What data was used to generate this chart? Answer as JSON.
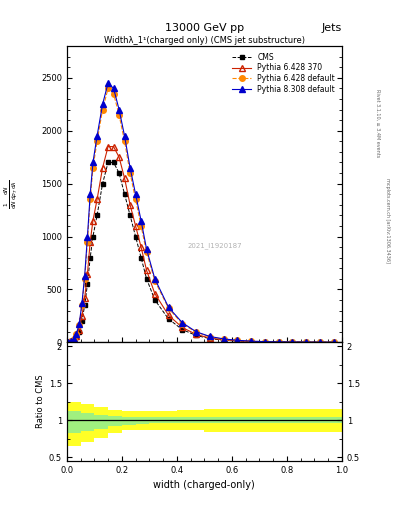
{
  "title": "13000 GeV pp",
  "title_right": "Jets",
  "plot_title": "Widthλ_1¹(charged only) (CMS jet substructure)",
  "xlabel": "width (charged-only)",
  "ylabel_ratio": "Ratio to CMS",
  "right_label_top": "Rivet 3.1.10, ≥ 3.4M events",
  "right_label_bottom": "mcplots.cern.ch [arXiv:1306.3436]",
  "watermark": "2021_I1920187",
  "x_data": [
    0.005,
    0.015,
    0.025,
    0.035,
    0.045,
    0.055,
    0.065,
    0.075,
    0.085,
    0.095,
    0.11,
    0.13,
    0.15,
    0.17,
    0.19,
    0.21,
    0.23,
    0.25,
    0.27,
    0.29,
    0.32,
    0.37,
    0.42,
    0.47,
    0.52,
    0.57,
    0.62,
    0.67,
    0.72,
    0.77,
    0.82,
    0.87,
    0.92,
    0.97
  ],
  "cms_y": [
    5,
    10,
    20,
    50,
    100,
    200,
    350,
    550,
    800,
    1000,
    1200,
    1500,
    1700,
    1700,
    1600,
    1400,
    1200,
    1000,
    800,
    600,
    400,
    220,
    120,
    65,
    35,
    20,
    12,
    7,
    4,
    3,
    2,
    1.5,
    1,
    0.8
  ],
  "pythia6_370_y": [
    6,
    12,
    25,
    60,
    120,
    250,
    420,
    650,
    950,
    1150,
    1350,
    1650,
    1850,
    1850,
    1750,
    1550,
    1300,
    1100,
    900,
    680,
    460,
    255,
    140,
    75,
    40,
    23,
    14,
    8,
    5,
    3.5,
    2.2,
    1.7,
    1.1,
    0.9
  ],
  "pythia6_default_y": [
    7,
    15,
    30,
    75,
    160,
    350,
    600,
    950,
    1350,
    1650,
    1900,
    2200,
    2400,
    2350,
    2150,
    1900,
    1600,
    1350,
    1100,
    850,
    580,
    320,
    175,
    95,
    52,
    30,
    18,
    10,
    6,
    4,
    2.8,
    2,
    1.4,
    1
  ],
  "pythia8_default_y": [
    7,
    16,
    32,
    80,
    170,
    370,
    630,
    1000,
    1400,
    1700,
    1950,
    2250,
    2450,
    2400,
    2200,
    1950,
    1650,
    1400,
    1150,
    880,
    600,
    330,
    185,
    100,
    55,
    32,
    19,
    11,
    6.5,
    4.2,
    3,
    2.2,
    1.5,
    1.1
  ],
  "cms_color": "#000000",
  "pythia6_370_color": "#cc2200",
  "pythia6_default_color": "#ff8800",
  "pythia8_default_color": "#0000cc",
  "yellow_band_x": [
    0.0,
    0.05,
    0.1,
    0.15,
    0.2,
    0.25,
    0.3,
    0.4,
    0.5,
    0.6,
    0.7,
    0.8,
    0.9,
    1.0
  ],
  "yellow_band_upper": [
    1.25,
    1.22,
    1.18,
    1.14,
    1.12,
    1.12,
    1.12,
    1.13,
    1.15,
    1.15,
    1.15,
    1.15,
    1.15,
    1.15
  ],
  "yellow_band_lower": [
    0.65,
    0.7,
    0.76,
    0.82,
    0.86,
    0.87,
    0.87,
    0.86,
    0.84,
    0.84,
    0.84,
    0.84,
    0.84,
    0.84
  ],
  "green_band_x": [
    0.0,
    0.05,
    0.1,
    0.15,
    0.2,
    0.25,
    0.3,
    0.4,
    0.5,
    0.6,
    0.7,
    0.8,
    0.9,
    1.0
  ],
  "green_band_upper": [
    1.12,
    1.1,
    1.07,
    1.05,
    1.04,
    1.04,
    1.04,
    1.04,
    1.04,
    1.04,
    1.04,
    1.04,
    1.04,
    1.04
  ],
  "green_band_lower": [
    0.82,
    0.85,
    0.88,
    0.92,
    0.94,
    0.95,
    0.96,
    0.96,
    0.96,
    0.96,
    0.96,
    0.96,
    0.96,
    0.96
  ],
  "ylim_main": [
    0,
    2800
  ],
  "ylim_ratio": [
    0.45,
    2.05
  ],
  "xlim": [
    0,
    1.0
  ],
  "yticks_main": [
    0,
    500,
    1000,
    1500,
    2000,
    2500
  ],
  "ytick_labels_main": [
    "0",
    "500",
    "1000",
    "1500",
    "2000",
    "2500"
  ],
  "yticks_ratio": [
    0.5,
    1.0,
    1.5,
    2.0
  ],
  "background_color": "white",
  "legend_entries": [
    "CMS",
    "Pythia 6.428 370",
    "Pythia 6.428 default",
    "Pythia 8.308 default"
  ]
}
